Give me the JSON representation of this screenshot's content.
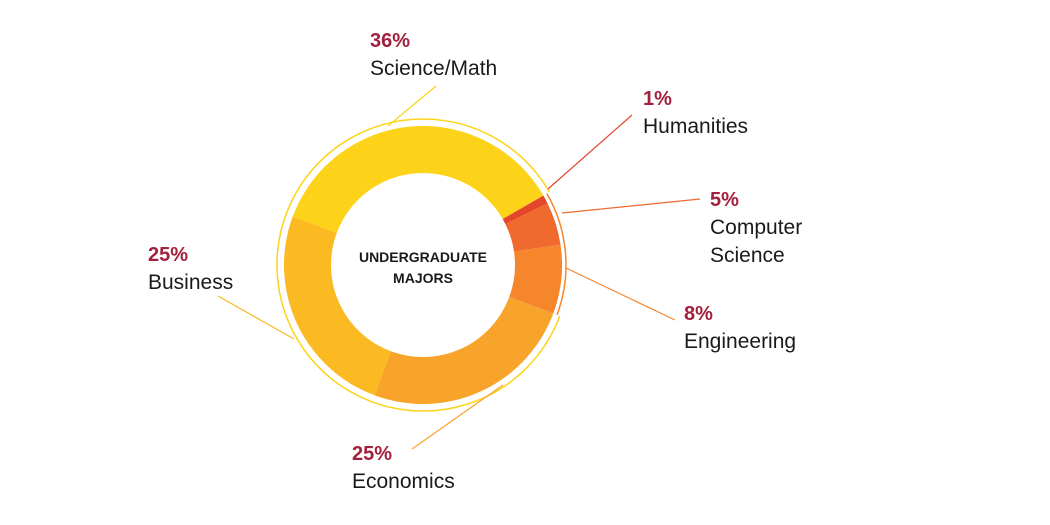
{
  "colors": {
    "percent_text": "#a31f3b",
    "label_text": "#1a1a1a",
    "center_text": "#1a1a1a"
  },
  "chart_data": {
    "type": "pie",
    "style": "donut",
    "title_lines": [
      "UNDERGRADUATE",
      "MAJORS"
    ],
    "slices": [
      {
        "label_lines": [
          "Humanities"
        ],
        "percent_label": "1%",
        "value": 1,
        "color": "#e4462c"
      },
      {
        "label_lines": [
          "Computer",
          "Science"
        ],
        "percent_label": "5%",
        "value": 5,
        "color": "#ef6a2c"
      },
      {
        "label_lines": [
          "Engineering"
        ],
        "percent_label": "8%",
        "value": 8,
        "color": "#f5862c"
      },
      {
        "label_lines": [
          "Economics"
        ],
        "percent_label": "25%",
        "value": 25,
        "color": "#f8a42a"
      },
      {
        "label_lines": [
          "Business"
        ],
        "percent_label": "25%",
        "value": 25,
        "color": "#fbb922"
      },
      {
        "label_lines": [
          "Science/Math"
        ],
        "percent_label": "36%",
        "value": 36,
        "color": "#fdd319"
      }
    ]
  }
}
